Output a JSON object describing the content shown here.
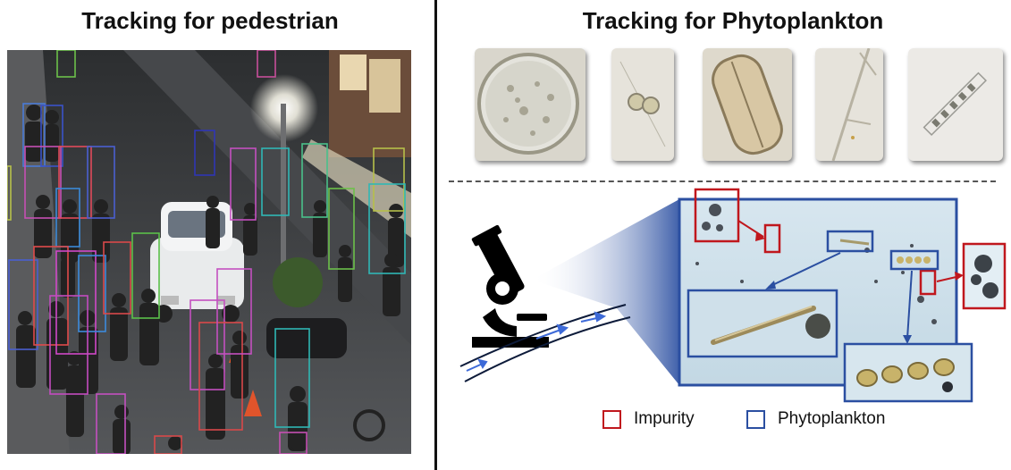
{
  "panels": {
    "left_title": "Tracking for pedestrian",
    "right_title": "Tracking for Phytoplankton"
  },
  "legend": {
    "impurity_label": "Impurity",
    "phytoplankton_label": "Phytoplankton"
  },
  "colors": {
    "impurity": "#c0171d",
    "phytoplankton": "#2b4fa1",
    "divider": "#111111"
  },
  "icons": [
    "microscope-icon",
    "flow-channel-icon"
  ]
}
